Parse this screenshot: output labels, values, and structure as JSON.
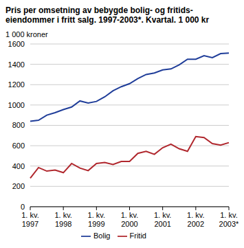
{
  "chart_data": {
    "type": "line",
    "title": "Pris per omsetning av bebygde bolig- og fritids-eiendommer i fritt salg. 1997-2003*. Kvartal. 1 000 kr",
    "ylabel": "1 000 kroner",
    "categories": [
      "1. kv. 1997",
      null,
      null,
      null,
      "1. kv. 1998",
      null,
      null,
      null,
      "1. kv. 1999",
      null,
      null,
      null,
      "1. kv. 2000",
      null,
      null,
      null,
      "1. kv. 2001",
      null,
      null,
      null,
      "1. kv. 2002",
      null,
      null,
      null,
      "1. kv. 2003*"
    ],
    "series": [
      {
        "name": "Bolig",
        "color": "#1f3d99",
        "values": [
          840,
          850,
          900,
          925,
          955,
          980,
          1040,
          1020,
          1035,
          1080,
          1140,
          1180,
          1210,
          1260,
          1300,
          1315,
          1345,
          1355,
          1395,
          1450,
          1450,
          1485,
          1465,
          1505,
          1510
        ]
      },
      {
        "name": "Fritid",
        "color": "#b0272d",
        "values": [
          280,
          385,
          350,
          360,
          335,
          425,
          380,
          355,
          425,
          435,
          415,
          445,
          445,
          525,
          545,
          515,
          580,
          615,
          570,
          545,
          690,
          680,
          620,
          605,
          630
        ]
      }
    ],
    "ylim": [
      0,
      1600
    ],
    "yticks": [
      0,
      200,
      400,
      600,
      800,
      1000,
      1200,
      1400,
      1600
    ],
    "grid": true,
    "legend": "bottom"
  }
}
